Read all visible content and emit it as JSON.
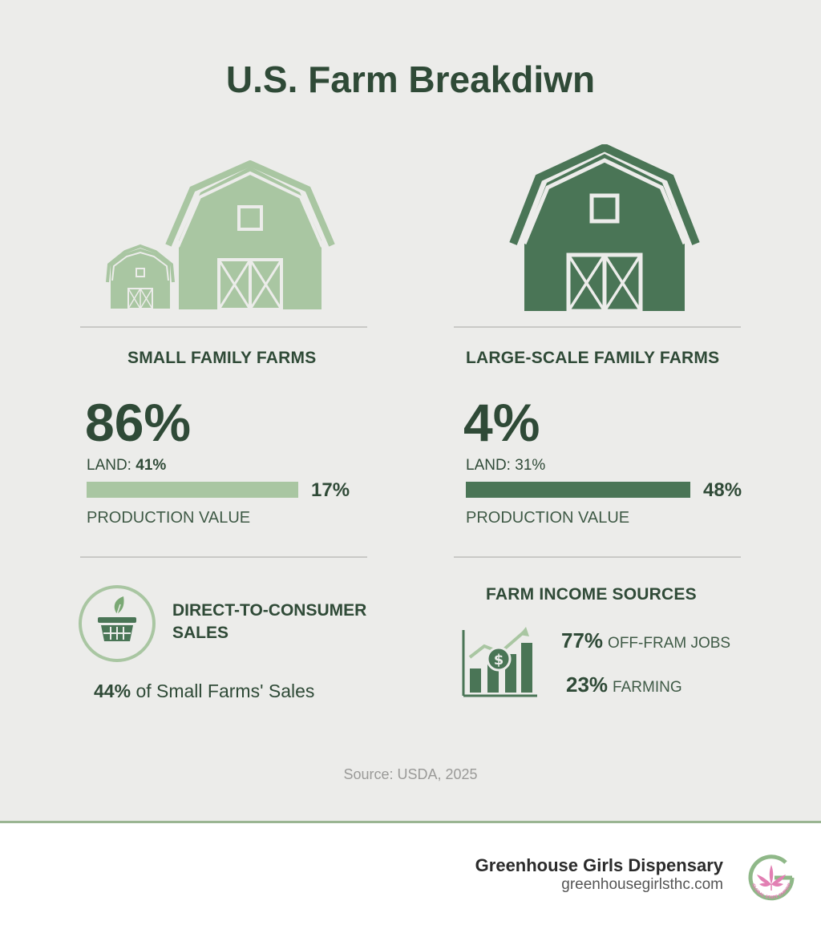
{
  "title": "U.S. Farm Breakdiwn",
  "small": {
    "heading": "SMALL FAMILY FARMS",
    "share": "86%",
    "land_label": "LAND:",
    "land_value": "41%",
    "bar_value": "17%",
    "bar_fraction": 0.17,
    "bar_label": "PRODUCTION VALUE",
    "color": "#a9c6a2"
  },
  "large": {
    "heading": "LARGE-SCALE FAMILY FARMS",
    "share": "4%",
    "land_label": "LAND:",
    "land_value": "31%",
    "bar_value": "48%",
    "bar_fraction": 0.48,
    "bar_label": "PRODUCTION VALUE",
    "color": "#4a7556"
  },
  "dtc": {
    "title_line1": "DIRECT-TO-CONSUMER",
    "title_line2": "SALES",
    "stat_value": "44%",
    "stat_text": "of Small Farms' Sales",
    "icon": "basket-icon"
  },
  "income": {
    "title": "FARM INCOME SOURCES",
    "icon": "growth-chart-dollar-icon",
    "rows": [
      {
        "value": "77%",
        "label": "OFF-FRAM JOBS"
      },
      {
        "value": "23%",
        "label": "FARMING"
      }
    ]
  },
  "source": "Source: USDA, 2025",
  "footer": {
    "brand": "Greenhouse Girls Dispensary",
    "url": "greenhousegirlsthc.com",
    "logo_text": "GLOBAL STATE EMPOWER"
  },
  "colors": {
    "dark_green": "#4a7556",
    "light_green": "#a9c6a2",
    "text_green": "#2f4a37",
    "background": "#ececea"
  }
}
